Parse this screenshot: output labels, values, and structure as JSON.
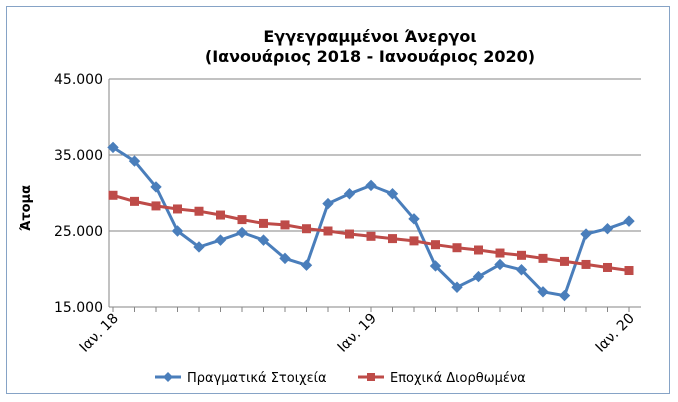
{
  "chart_data": {
    "type": "line",
    "title": "Εγγεγραμμένοι Άνεργοι",
    "subtitle": "(Ιανουάριος 2018 - Ιανουάριος 2020)",
    "ylabel": "Άτομα",
    "xlabel": "",
    "ylim": [
      15000,
      45000
    ],
    "y_ticks": [
      "15.000",
      "25.000",
      "35.000",
      "45.000"
    ],
    "y_tick_values": [
      15000,
      25000,
      35000,
      45000
    ],
    "x_ticks": [
      {
        "label": "Ιαν. 18",
        "index": 0
      },
      {
        "label": "Ιαν. 19",
        "index": 12
      },
      {
        "label": "Ιαν. 20",
        "index": 24
      }
    ],
    "x": [
      "2018-01",
      "2018-02",
      "2018-03",
      "2018-04",
      "2018-05",
      "2018-06",
      "2018-07",
      "2018-08",
      "2018-09",
      "2018-10",
      "2018-11",
      "2018-12",
      "2019-01",
      "2019-02",
      "2019-03",
      "2019-04",
      "2019-05",
      "2019-06",
      "2019-07",
      "2019-08",
      "2019-09",
      "2019-10",
      "2019-11",
      "2019-12",
      "2020-01"
    ],
    "series": [
      {
        "name": "Πραγματικά Στοιχεία",
        "color": "#4a7ebb",
        "marker": "diamond",
        "values": [
          36000,
          34200,
          30800,
          25000,
          22900,
          23800,
          24800,
          23800,
          21400,
          20500,
          28600,
          29900,
          31000,
          29900,
          26600,
          20400,
          17600,
          19000,
          20600,
          19900,
          17000,
          16500,
          24600,
          25300,
          26300
        ]
      },
      {
        "name": "Εποχικά Διορθωμένα",
        "color": "#be4b48",
        "marker": "square",
        "values": [
          29700,
          28900,
          28300,
          27900,
          27600,
          27100,
          26500,
          26000,
          25800,
          25300,
          25000,
          24600,
          24300,
          24000,
          23700,
          23200,
          22800,
          22500,
          22100,
          21800,
          21400,
          21000,
          20600,
          20200,
          19800
        ]
      }
    ],
    "grid": "horizontal",
    "legend": "bottom"
  }
}
